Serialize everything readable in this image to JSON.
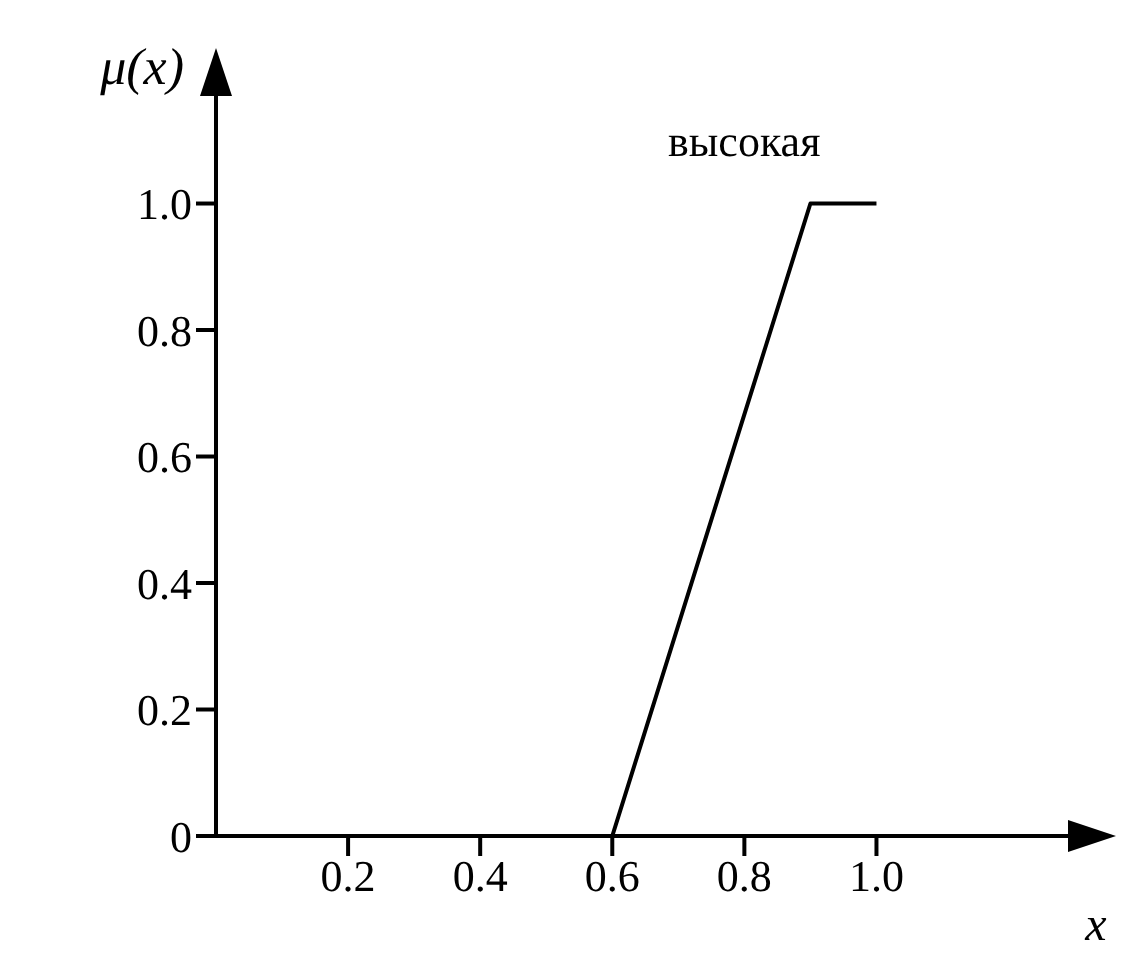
{
  "chart_data": {
    "type": "line",
    "xlabel": "x",
    "ylabel": "μ(x)",
    "x": [
      0.6,
      0.9,
      1.0
    ],
    "series": [
      {
        "color": "#000000",
        "values": [
          0,
          1,
          1
        ]
      }
    ],
    "annotations": [
      "высокая"
    ],
    "xlim": [
      0,
      1.29
    ],
    "ylim": [
      0,
      1.17
    ],
    "xticks": [
      0.2,
      0.4,
      0.6,
      0.8,
      {
        "value": 1,
        "label": "1.0"
      }
    ],
    "yticks": [
      0,
      0.2,
      0.4,
      0.6,
      0.8,
      {
        "value": 1,
        "label": "1.0"
      }
    ],
    "grid": false,
    "legend": false,
    "marker": "none",
    "line_style": "solid"
  }
}
